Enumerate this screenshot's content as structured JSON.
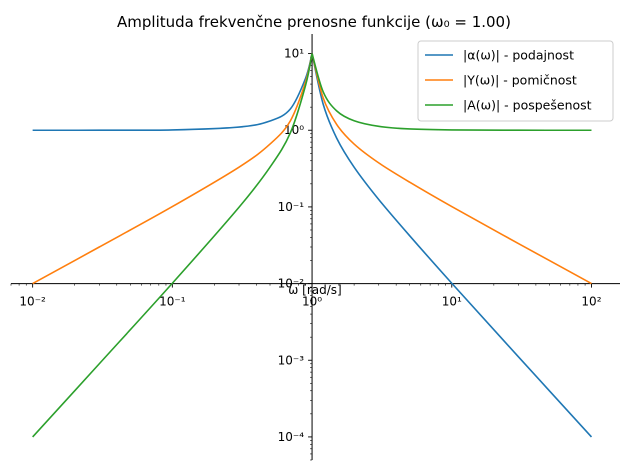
{
  "chart_data": {
    "type": "line",
    "title": "Amplituda frekvenčne prenosne funkcije (ω₀ = 1.00)",
    "xlabel": "ω [rad/s]",
    "ylabel": "",
    "xscale": "log",
    "yscale": "log",
    "xlim": [
      0.007,
      160
    ],
    "ylim": [
      5e-05,
      18
    ],
    "x_ticks": [
      {
        "value": 0.01,
        "label": "10⁻²"
      },
      {
        "value": 0.1,
        "label": "10⁻¹"
      },
      {
        "value": 1,
        "label": "10⁰"
      },
      {
        "value": 10,
        "label": "10¹"
      },
      {
        "value": 100,
        "label": "10²"
      }
    ],
    "y_ticks": [
      {
        "value": 10,
        "label": "10¹"
      },
      {
        "value": 1,
        "label": "10⁰"
      },
      {
        "value": 0.1,
        "label": "10⁻¹"
      },
      {
        "value": 0.01,
        "label": "10⁻²"
      },
      {
        "value": 0.001,
        "label": "10⁻³"
      },
      {
        "value": 0.0001,
        "label": "10⁻⁴"
      }
    ],
    "spines": "centered",
    "legend_position": "top-right",
    "series": [
      {
        "name": "|α(ω)| - podajnost",
        "color": "#1f77b4",
        "x": [
          0.01,
          0.03,
          0.1,
          0.3,
          0.5,
          0.7,
          0.9,
          1,
          1.2,
          1.5,
          2,
          3,
          5,
          10,
          30,
          100
        ],
        "y": [
          1.0,
          1.001,
          1.01,
          1.1,
          1.32,
          1.9,
          4.8,
          10.0,
          2.2,
          0.79,
          0.33,
          0.125,
          0.042,
          0.0101,
          0.00111,
          0.0001
        ]
      },
      {
        "name": "|Y(ω)| - pomičnost",
        "color": "#ff7f0e",
        "x": [
          0.01,
          0.03,
          0.1,
          0.3,
          0.5,
          0.7,
          0.9,
          1,
          1.2,
          1.5,
          2,
          3,
          5,
          10,
          30,
          100
        ],
        "y": [
          0.01,
          0.03,
          0.101,
          0.33,
          0.66,
          1.33,
          4.3,
          10.0,
          2.65,
          1.19,
          0.66,
          0.375,
          0.21,
          0.101,
          0.0333,
          0.01
        ]
      },
      {
        "name": "|A(ω)| - pospešenost",
        "color": "#2ca02c",
        "x": [
          0.01,
          0.03,
          0.1,
          0.3,
          0.5,
          0.7,
          0.9,
          1,
          1.2,
          1.5,
          2,
          3,
          5,
          10,
          30,
          100
        ],
        "y": [
          0.0001,
          0.0009,
          0.0101,
          0.099,
          0.33,
          0.93,
          3.9,
          10.0,
          3.18,
          1.79,
          1.33,
          1.125,
          1.04,
          1.01,
          1.001,
          1.0
        ]
      }
    ]
  }
}
